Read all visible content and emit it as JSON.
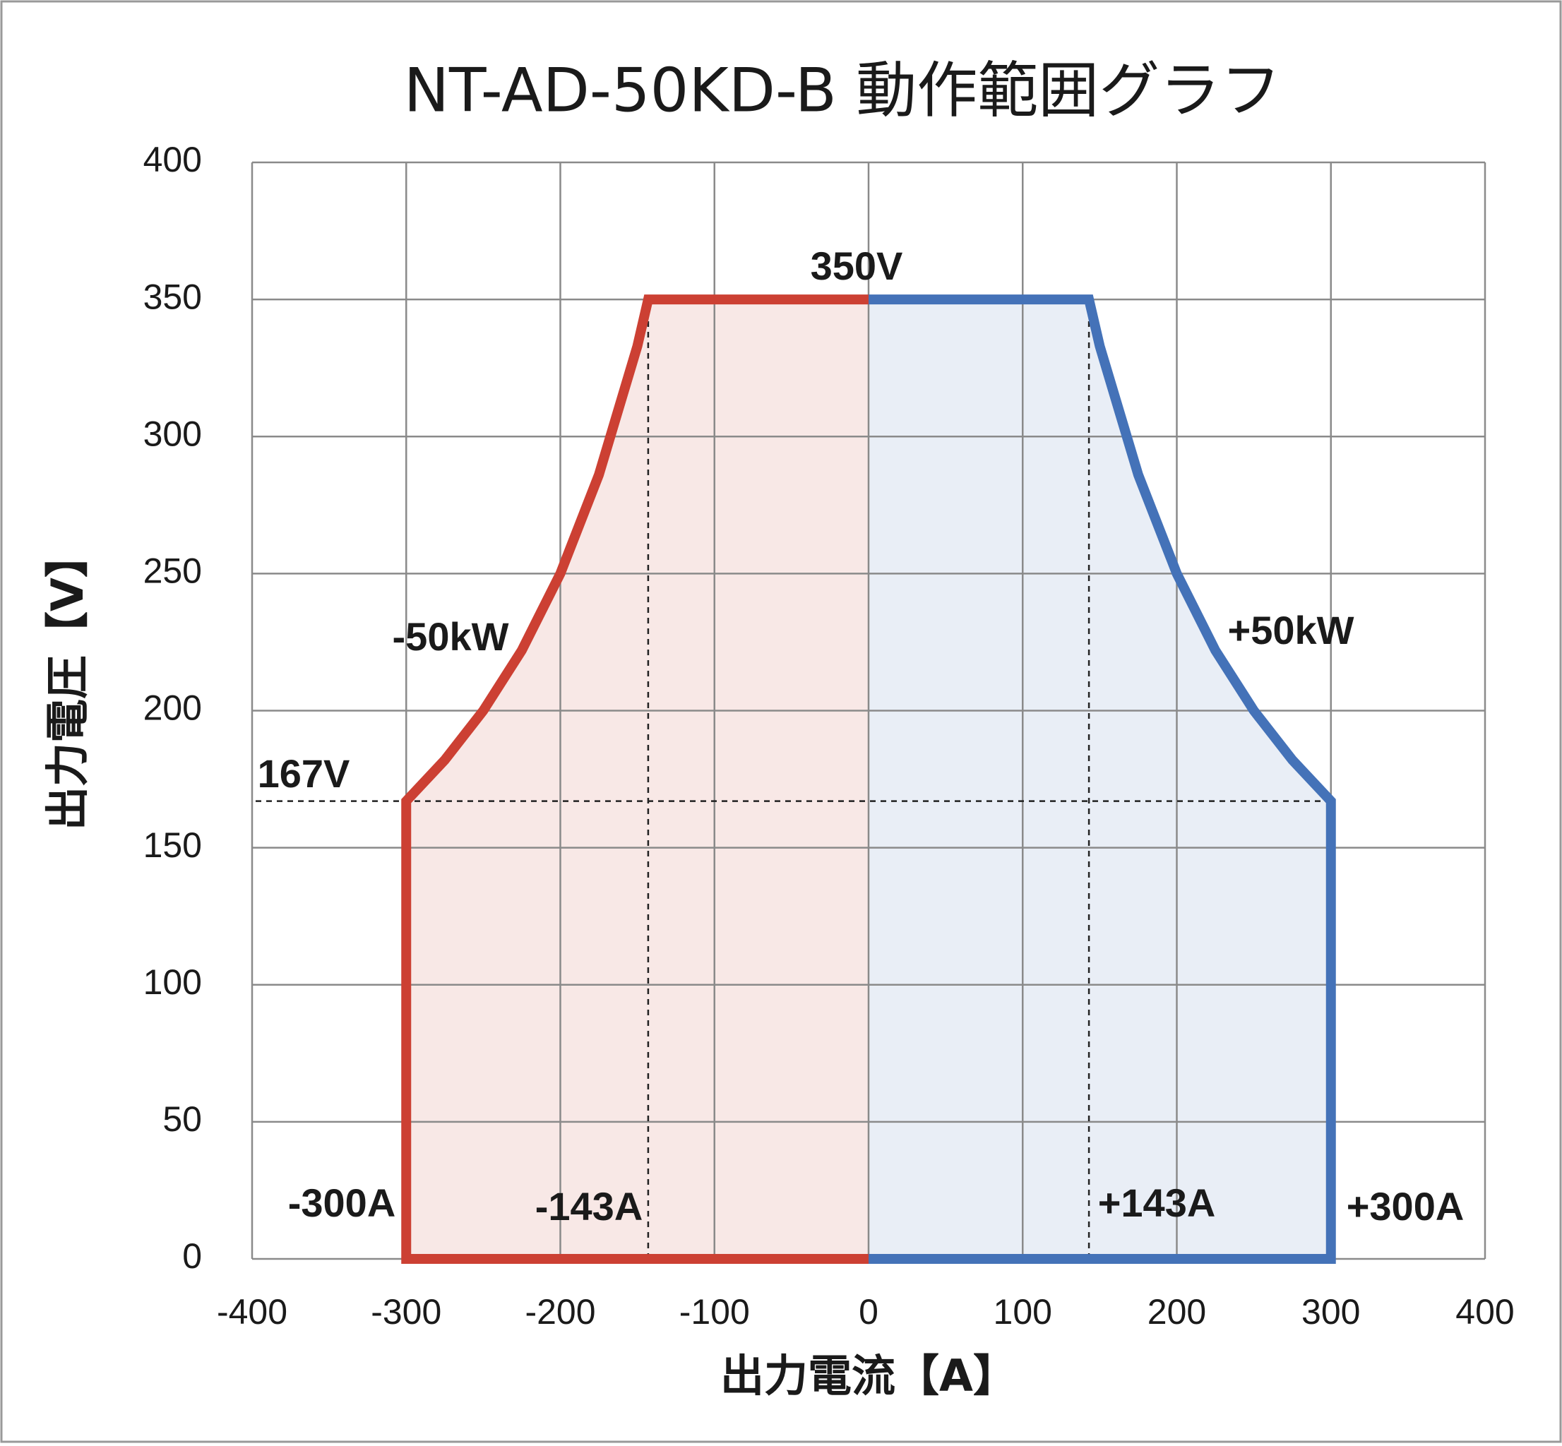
{
  "chart_data": {
    "type": "line",
    "title": "NT-AD-50KD-B  動作範囲グラフ",
    "x_label": "出力電流【A】",
    "y_label": "出力電圧【V】",
    "xlim": [
      -400,
      400
    ],
    "xticks": [
      -400,
      -300,
      -200,
      -100,
      0,
      100,
      200,
      300,
      400
    ],
    "ylim": [
      0,
      400
    ],
    "yticks": [
      0,
      50,
      100,
      150,
      200,
      250,
      300,
      350,
      400
    ],
    "grid": true,
    "fill": true,
    "series": [
      {
        "color": "#cc4033",
        "fill_color": "#f8e8e6",
        "x": [
          0,
          -300,
          -300,
          -275,
          -250,
          -225,
          -200,
          -175,
          -150,
          -143,
          0
        ],
        "values": [
          0,
          0,
          167,
          182,
          200,
          222,
          250,
          286,
          333,
          350,
          350
        ]
      },
      {
        "color": "#4472b8",
        "fill_color": "#e9eef6",
        "x": [
          0,
          300,
          300,
          275,
          250,
          225,
          200,
          175,
          150,
          143,
          0
        ],
        "values": [
          0,
          0,
          167,
          182,
          200,
          222,
          250,
          286,
          333,
          350,
          350
        ]
      }
    ],
    "vlines": [
      -143,
      143
    ],
    "hlines": [
      167
    ],
    "annotations": [
      "350V",
      "-50kW",
      "+50kW",
      "167V",
      "-300A",
      "-143A",
      "+143A",
      "+300A"
    ]
  }
}
